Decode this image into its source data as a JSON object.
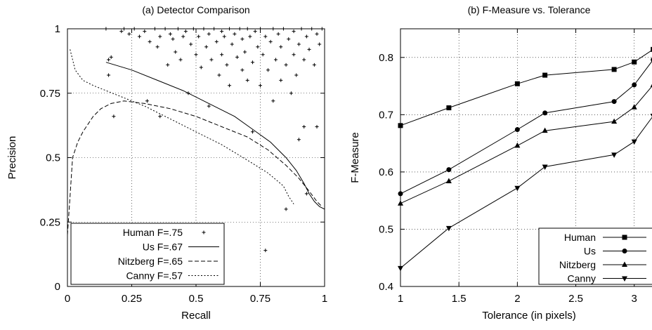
{
  "chart_data": [
    {
      "type": "line",
      "title": "(a) Detector Comparison",
      "xlabel": "Recall",
      "ylabel": "Precision",
      "xlim": [
        0,
        1
      ],
      "ylim": [
        0,
        1
      ],
      "xticks": [
        "0",
        "0.25",
        "0.5",
        "0.75",
        "1"
      ],
      "yticks": [
        "0",
        "0.25",
        "0.5",
        "0.75",
        "1"
      ],
      "grid": true,
      "legend_position": "bottom-left",
      "series": [
        {
          "name": "Human F=.75",
          "kind": "scatter",
          "marker": "+",
          "points": [
            [
              0.15,
              1
            ],
            [
              0.16,
              0.82
            ],
            [
              0.16,
              0.88
            ],
            [
              0.17,
              0.89
            ],
            [
              0.18,
              0.66
            ],
            [
              0.21,
              0.99
            ],
            [
              0.22,
              1
            ],
            [
              0.24,
              0.98
            ],
            [
              0.26,
              1
            ],
            [
              0.28,
              0.97
            ],
            [
              0.3,
              0.99
            ],
            [
              0.31,
              0.72
            ],
            [
              0.32,
              0.95
            ],
            [
              0.34,
              1
            ],
            [
              0.35,
              0.93
            ],
            [
              0.36,
              0.97
            ],
            [
              0.36,
              0.66
            ],
            [
              0.38,
              1
            ],
            [
              0.39,
              0.86
            ],
            [
              0.4,
              0.98
            ],
            [
              0.41,
              0.96
            ],
            [
              0.42,
              0.91
            ],
            [
              0.43,
              1
            ],
            [
              0.44,
              0.88
            ],
            [
              0.45,
              0.97
            ],
            [
              0.46,
              0.99
            ],
            [
              0.47,
              0.75
            ],
            [
              0.48,
              0.94
            ],
            [
              0.49,
              1
            ],
            [
              0.5,
              0.9
            ],
            [
              0.51,
              0.97
            ],
            [
              0.52,
              0.85
            ],
            [
              0.53,
              1
            ],
            [
              0.54,
              0.93
            ],
            [
              0.55,
              0.98
            ],
            [
              0.55,
              0.7
            ],
            [
              0.56,
              0.88
            ],
            [
              0.57,
              1
            ],
            [
              0.58,
              0.95
            ],
            [
              0.59,
              0.82
            ],
            [
              0.6,
              0.99
            ],
            [
              0.6,
              0.9
            ],
            [
              0.61,
              0.97
            ],
            [
              0.62,
              0.86
            ],
            [
              0.63,
              1
            ],
            [
              0.63,
              0.78
            ],
            [
              0.64,
              0.94
            ],
            [
              0.65,
              0.98
            ],
            [
              0.66,
              0.89
            ],
            [
              0.67,
              1
            ],
            [
              0.68,
              0.84
            ],
            [
              0.68,
              0.96
            ],
            [
              0.69,
              0.91
            ],
            [
              0.7,
              1
            ],
            [
              0.7,
              0.8
            ],
            [
              0.71,
              0.97
            ],
            [
              0.72,
              0.87
            ],
            [
              0.72,
              0.6
            ],
            [
              0.73,
              0.99
            ],
            [
              0.74,
              0.93
            ],
            [
              0.75,
              0.78
            ],
            [
              0.75,
              1
            ],
            [
              0.76,
              0.9
            ],
            [
              0.77,
              0.97
            ],
            [
              0.77,
              0.14
            ],
            [
              0.78,
              0.84
            ],
            [
              0.79,
              0.95
            ],
            [
              0.8,
              1
            ],
            [
              0.8,
              0.72
            ],
            [
              0.81,
              0.88
            ],
            [
              0.82,
              0.98
            ],
            [
              0.83,
              0.8
            ],
            [
              0.83,
              0.93
            ],
            [
              0.84,
              1
            ],
            [
              0.85,
              0.86
            ],
            [
              0.85,
              0.3
            ],
            [
              0.86,
              0.96
            ],
            [
              0.87,
              0.75
            ],
            [
              0.88,
              0.9
            ],
            [
              0.88,
              0.99
            ],
            [
              0.89,
              0.82
            ],
            [
              0.9,
              0.94
            ],
            [
              0.9,
              0.57
            ],
            [
              0.91,
              1
            ],
            [
              0.92,
              0.88
            ],
            [
              0.92,
              0.62
            ],
            [
              0.93,
              0.97
            ],
            [
              0.93,
              0.36
            ],
            [
              0.94,
              0.92
            ],
            [
              0.95,
              1
            ],
            [
              0.96,
              0.86
            ],
            [
              0.97,
              0.98
            ],
            [
              0.97,
              0.62
            ],
            [
              0.98,
              0.94
            ],
            [
              0.99,
              1
            ]
          ]
        },
        {
          "name": "Us F=.67",
          "dash": "solid",
          "points": [
            [
              0.15,
              0.87
            ],
            [
              0.25,
              0.84
            ],
            [
              0.35,
              0.8
            ],
            [
              0.45,
              0.76
            ],
            [
              0.55,
              0.71
            ],
            [
              0.65,
              0.66
            ],
            [
              0.72,
              0.61
            ],
            [
              0.79,
              0.56
            ],
            [
              0.85,
              0.5
            ],
            [
              0.89,
              0.45
            ],
            [
              0.92,
              0.4
            ],
            [
              0.94,
              0.36
            ],
            [
              0.96,
              0.33
            ],
            [
              0.98,
              0.31
            ],
            [
              1.0,
              0.3
            ]
          ]
        },
        {
          "name": "Nitzberg F=.65",
          "dash": "dashed",
          "points": [
            [
              0.0,
              0.2
            ],
            [
              0.01,
              0.35
            ],
            [
              0.02,
              0.5
            ],
            [
              0.04,
              0.56
            ],
            [
              0.06,
              0.6
            ],
            [
              0.08,
              0.63
            ],
            [
              0.1,
              0.66
            ],
            [
              0.13,
              0.69
            ],
            [
              0.17,
              0.71
            ],
            [
              0.22,
              0.72
            ],
            [
              0.3,
              0.71
            ],
            [
              0.4,
              0.69
            ],
            [
              0.5,
              0.66
            ],
            [
              0.6,
              0.62
            ],
            [
              0.7,
              0.58
            ],
            [
              0.78,
              0.53
            ],
            [
              0.85,
              0.47
            ],
            [
              0.9,
              0.42
            ],
            [
              0.94,
              0.37
            ],
            [
              0.97,
              0.33
            ],
            [
              0.99,
              0.31
            ]
          ]
        },
        {
          "name": "Canny F=.57",
          "dash": "dotted",
          "points": [
            [
              0.01,
              0.92
            ],
            [
              0.03,
              0.84
            ],
            [
              0.06,
              0.8
            ],
            [
              0.1,
              0.78
            ],
            [
              0.2,
              0.74
            ],
            [
              0.3,
              0.7
            ],
            [
              0.4,
              0.65
            ],
            [
              0.5,
              0.6
            ],
            [
              0.6,
              0.55
            ],
            [
              0.7,
              0.49
            ],
            [
              0.78,
              0.44
            ],
            [
              0.84,
              0.39
            ],
            [
              0.86,
              0.35
            ],
            [
              0.88,
              0.32
            ]
          ]
        }
      ]
    },
    {
      "type": "line",
      "title": "(b) F-Measure vs. Tolerance",
      "xlabel": "Tolerance (in pixels)",
      "ylabel": "F-Measure",
      "xlim": [
        1,
        3.2
      ],
      "ylim": [
        0.4,
        0.85
      ],
      "xticks": [
        "1",
        "1.5",
        "2",
        "2.5",
        "3"
      ],
      "yticks": [
        "0.4",
        "0.5",
        "0.6",
        "0.7",
        "0.8"
      ],
      "grid": true,
      "legend_position": "bottom-right",
      "series": [
        {
          "name": "Human",
          "marker": "square",
          "points": [
            [
              1,
              0.681
            ],
            [
              1.414,
              0.712
            ],
            [
              2,
              0.754
            ],
            [
              2.236,
              0.769
            ],
            [
              2.828,
              0.779
            ],
            [
              3,
              0.792
            ],
            [
              3.162,
              0.814
            ]
          ]
        },
        {
          "name": "Us",
          "marker": "circle",
          "points": [
            [
              1,
              0.562
            ],
            [
              1.414,
              0.604
            ],
            [
              2,
              0.674
            ],
            [
              2.236,
              0.703
            ],
            [
              2.828,
              0.723
            ],
            [
              3,
              0.752
            ],
            [
              3.162,
              0.796
            ]
          ]
        },
        {
          "name": "Nitzberg",
          "marker": "triangle-up",
          "points": [
            [
              1,
              0.545
            ],
            [
              1.414,
              0.584
            ],
            [
              2,
              0.646
            ],
            [
              2.236,
              0.672
            ],
            [
              2.828,
              0.688
            ],
            [
              3,
              0.713
            ],
            [
              3.162,
              0.752
            ]
          ]
        },
        {
          "name": "Canny",
          "marker": "triangle-down",
          "points": [
            [
              1,
              0.432
            ],
            [
              1.414,
              0.502
            ],
            [
              2,
              0.572
            ],
            [
              2.236,
              0.609
            ],
            [
              2.828,
              0.63
            ],
            [
              3,
              0.653
            ],
            [
              3.162,
              0.698
            ]
          ]
        }
      ]
    }
  ]
}
